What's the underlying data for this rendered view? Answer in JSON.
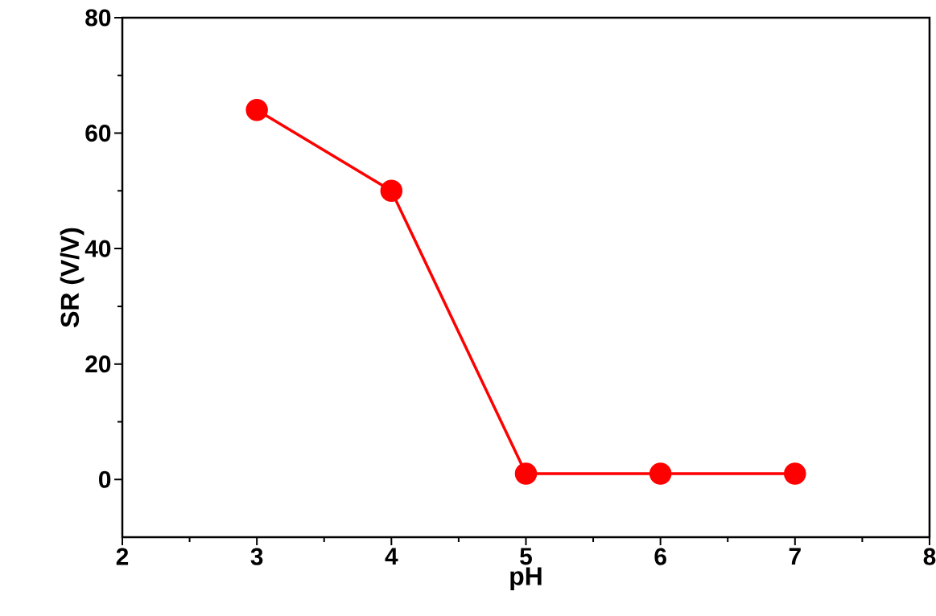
{
  "chart_data": {
    "type": "line",
    "xlabel": "pH",
    "ylabel": "SR (V/V)",
    "x": [
      3,
      4,
      5,
      6,
      7
    ],
    "series": [
      {
        "color": "#ff0000",
        "values": [
          64,
          50,
          1,
          1,
          1
        ]
      }
    ],
    "xlim": [
      2,
      8
    ],
    "xticks": [
      2,
      3,
      4,
      5,
      6,
      7,
      8
    ],
    "ylim": [
      -10,
      80
    ],
    "yticks": [
      0,
      20,
      40,
      60,
      80
    ],
    "marker": "circle",
    "line_style": "solid"
  }
}
